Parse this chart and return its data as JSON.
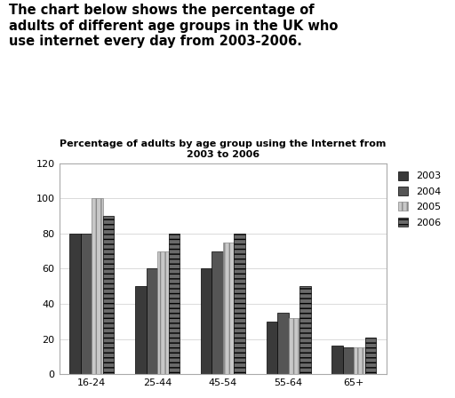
{
  "title": "Percentage of adults by age group using the Internet from\n2003 to 2006",
  "header_text": "The chart below shows the percentage of\nadults of different age groups in the UK who\nuse internet every day from 2003-2006.",
  "categories": [
    "16-24",
    "25-44",
    "45-54",
    "55-64",
    "65+"
  ],
  "years": [
    "2003",
    "2004",
    "2005",
    "2006"
  ],
  "values": {
    "2003": [
      80,
      50,
      60,
      30,
      16
    ],
    "2004": [
      80,
      60,
      70,
      35,
      15
    ],
    "2005": [
      100,
      70,
      75,
      32,
      15
    ],
    "2006": [
      90,
      80,
      80,
      50,
      21
    ]
  },
  "bar_colors": [
    "#3a3a3a",
    "#555555",
    "#c8c8c8",
    "#6a6a6a"
  ],
  "bar_hatches": [
    "",
    "",
    "|||",
    "---"
  ],
  "bar_edgecolors": [
    "#000000",
    "#000000",
    "#888888",
    "#000000"
  ],
  "ylim": [
    0,
    120
  ],
  "yticks": [
    0,
    20,
    40,
    60,
    80,
    100,
    120
  ],
  "title_fontsize": 8,
  "tick_fontsize": 8,
  "background_color": "#ffffff",
  "figure_background": "#ffffff",
  "chart_border_color": "#aaaaaa"
}
